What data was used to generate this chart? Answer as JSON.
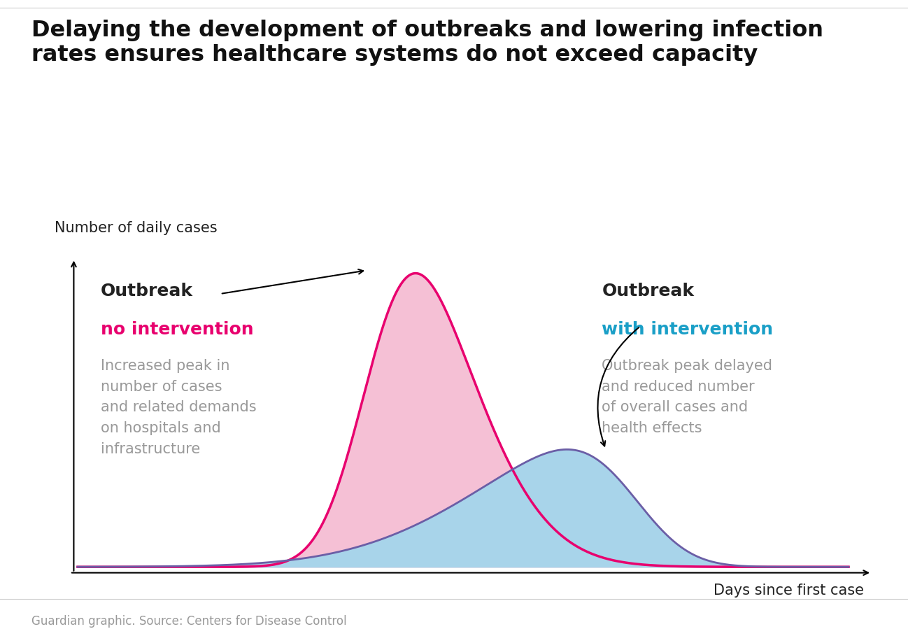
{
  "title_line1": "Delaying the development of outbreaks and lowering infection",
  "title_line2": "rates ensures healthcare systems do not exceed capacity",
  "ylabel": "Number of daily cases",
  "xlabel": "Days since first case",
  "source": "Guardian graphic. Source: Centers for Disease Control",
  "label1_bold": "Outbreak",
  "label1_color_text": "no intervention",
  "label1_color_hex": "#e8006e",
  "label1_desc": "Increased peak in\nnumber of cases\nand related demands\non hospitals and\ninfrastructure",
  "label2_bold": "Outbreak",
  "label2_color_text": "with intervention",
  "label2_color_hex": "#1a9fc7",
  "label2_desc": "Outbreak peak delayed\nand reduced number\nof overall cases and\nhealth effects",
  "curve1_color": "#e8006e",
  "curve1_fill": "#f5c0d5",
  "curve2_color": "#6b5ea6",
  "curve2_fill": "#a8d4ea",
  "background_color": "#ffffff",
  "title_fontsize": 23,
  "label_fontsize": 18,
  "desc_fontsize": 15,
  "axis_label_fontsize": 15,
  "source_fontsize": 12,
  "text_color": "#222222",
  "gray_text_color": "#999999"
}
